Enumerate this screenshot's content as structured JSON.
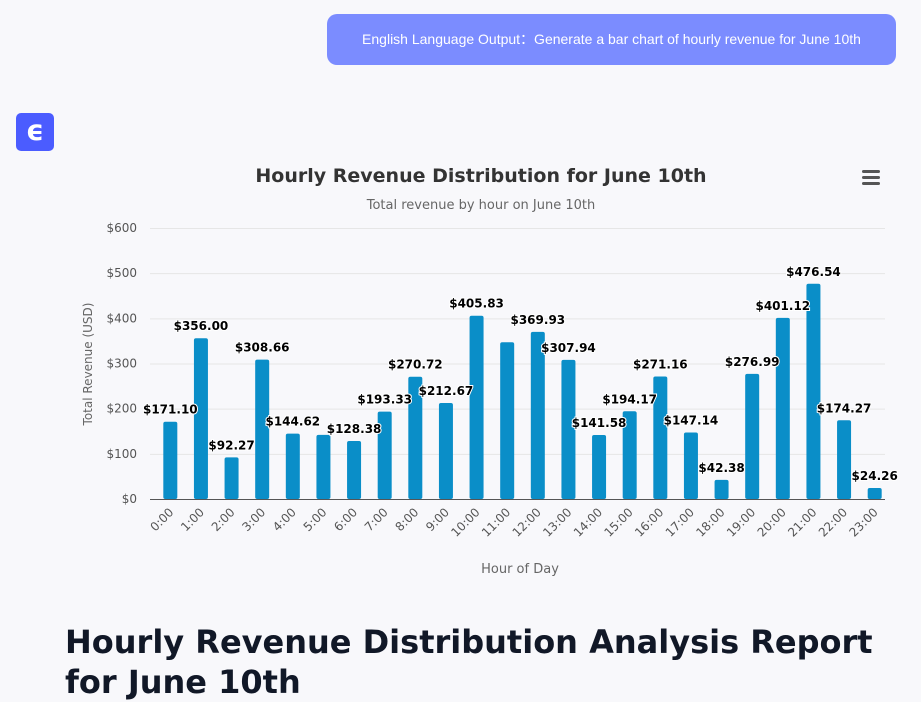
{
  "prompt": "English Language Output：Generate a bar chart of hourly revenue for June 10th",
  "logo_text": "ϵ",
  "report_title": "Hourly Revenue Distribution Analysis Report for June 10th",
  "colors": {
    "bar": "#0a8ec8",
    "bubble": "#7b8cff",
    "logo": "#4b5cff"
  },
  "chart_data": {
    "type": "bar",
    "title": "Hourly Revenue Distribution for June 10th",
    "subtitle": "Total revenue by hour on June 10th",
    "xlabel": "Hour of Day",
    "ylabel": "Total Revenue (USD)",
    "ylim": [
      0,
      600
    ],
    "yticks": [
      "$0",
      "$100",
      "$200",
      "$300",
      "$400",
      "$500",
      "$600"
    ],
    "grid": true,
    "menu_icon": "hamburger-menu-icon",
    "categories": [
      "0:00",
      "1:00",
      "2:00",
      "3:00",
      "4:00",
      "5:00",
      "6:00",
      "7:00",
      "8:00",
      "9:00",
      "10:00",
      "11:00",
      "12:00",
      "13:00",
      "14:00",
      "15:00",
      "16:00",
      "17:00",
      "18:00",
      "19:00",
      "20:00",
      "21:00",
      "22:00",
      "23:00"
    ],
    "values": [
      171.1,
      356.0,
      92.27,
      308.66,
      144.62,
      142,
      128.38,
      193.33,
      270.72,
      212.67,
      405.83,
      347,
      369.93,
      307.94,
      141.58,
      194.17,
      271.16,
      147.14,
      42.38,
      276.99,
      401.12,
      476.54,
      174.27,
      24.26
    ],
    "data_labels": [
      "$171.10",
      "$356.00",
      "$92.27",
      "$308.66",
      "$144.62",
      "",
      "$128.38",
      "$193.33",
      "$270.72",
      "$212.67",
      "$405.83",
      "",
      "$369.93",
      "$307.94",
      "$141.58",
      "$194.17",
      "$271.16",
      "$147.14",
      "$42.38",
      "$276.99",
      "$401.12",
      "$476.54",
      "$174.27",
      "$24.26"
    ]
  }
}
